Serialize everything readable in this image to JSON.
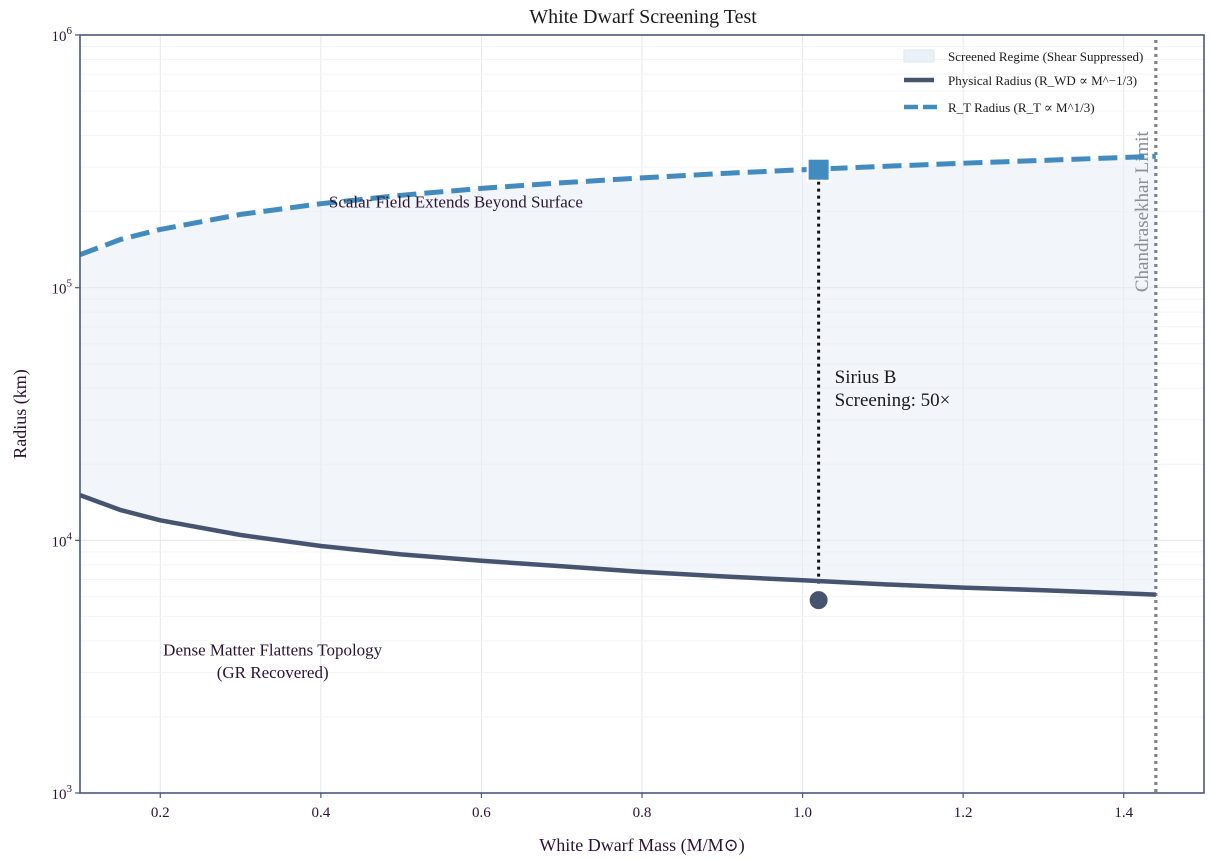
{
  "chart_data": {
    "type": "line",
    "title": "White Dwarf Screening Test",
    "xlabel": "White Dwarf Mass (M/M⊙)",
    "ylabel": "Radius (km)",
    "xlim": [
      0.1,
      1.5
    ],
    "ylim": [
      1000,
      1000000
    ],
    "yscale": "log",
    "grid": true,
    "legend_position": "top-right",
    "x_ticks": [
      0.2,
      0.4,
      0.6,
      0.8,
      1.0,
      1.2,
      1.4
    ],
    "x_tick_labels": [
      "0.2",
      "0.4",
      "0.6",
      "0.8",
      "1.0",
      "1.2",
      "1.4"
    ],
    "y_ticks": [
      1000,
      10000,
      100000,
      1000000
    ],
    "y_tick_labels": [
      {
        "base": "10",
        "exp": "3"
      },
      {
        "base": "10",
        "exp": "4"
      },
      {
        "base": "10",
        "exp": "5"
      },
      {
        "base": "10",
        "exp": "6"
      }
    ],
    "legend": [
      {
        "key": "screened",
        "label": "Screened Regime (Shear Suppressed)"
      },
      {
        "key": "physical",
        "label": "Physical Radius (R_WD ∝ M^−1/3)"
      },
      {
        "key": "rt",
        "label": "R_T Radius (R_T ∝ M^1/3)"
      }
    ],
    "series": [
      {
        "key": "physical",
        "x": [
          0.1,
          0.15,
          0.2,
          0.3,
          0.4,
          0.5,
          0.6,
          0.7,
          0.8,
          0.9,
          1.0,
          1.1,
          1.2,
          1.3,
          1.44
        ],
        "values": [
          15100,
          13200,
          12000,
          10500,
          9500,
          8800,
          8300,
          7900,
          7500,
          7200,
          6950,
          6700,
          6500,
          6350,
          6100
        ]
      },
      {
        "key": "rt",
        "x": [
          0.1,
          0.15,
          0.2,
          0.3,
          0.4,
          0.5,
          0.6,
          0.7,
          0.8,
          0.9,
          1.0,
          1.1,
          1.2,
          1.3,
          1.44
        ],
        "values": [
          135000,
          155000,
          170000,
          195000,
          215000,
          232000,
          247000,
          260000,
          272000,
          283000,
          293000,
          302000,
          311000,
          319000,
          331000
        ]
      }
    ],
    "points": [
      {
        "key": "sirius-rt",
        "x": 1.02,
        "y": 293000,
        "marker": "square"
      },
      {
        "key": "sirius-physical",
        "x": 1.02,
        "y": 5800,
        "marker": "circle"
      }
    ],
    "vline": {
      "x": 1.44,
      "label": "Chandrasekhar Limit"
    },
    "connector": {
      "x": 1.02,
      "y_from": 6600,
      "y_to": 280000
    },
    "annotations": {
      "scalar": "Scalar Field Extends Beyond Surface",
      "sirius_line1": "Sirius B",
      "sirius_line2": "Screening: 50×",
      "dense_line1": "Dense Matter Flattens Topology",
      "dense_line2": "(GR Recovered)"
    },
    "colors": {
      "physical": "#46546f",
      "rt": "#428bbf",
      "fill": "#e6eef6",
      "vline": "#808488",
      "frame": "#4a5878"
    }
  }
}
